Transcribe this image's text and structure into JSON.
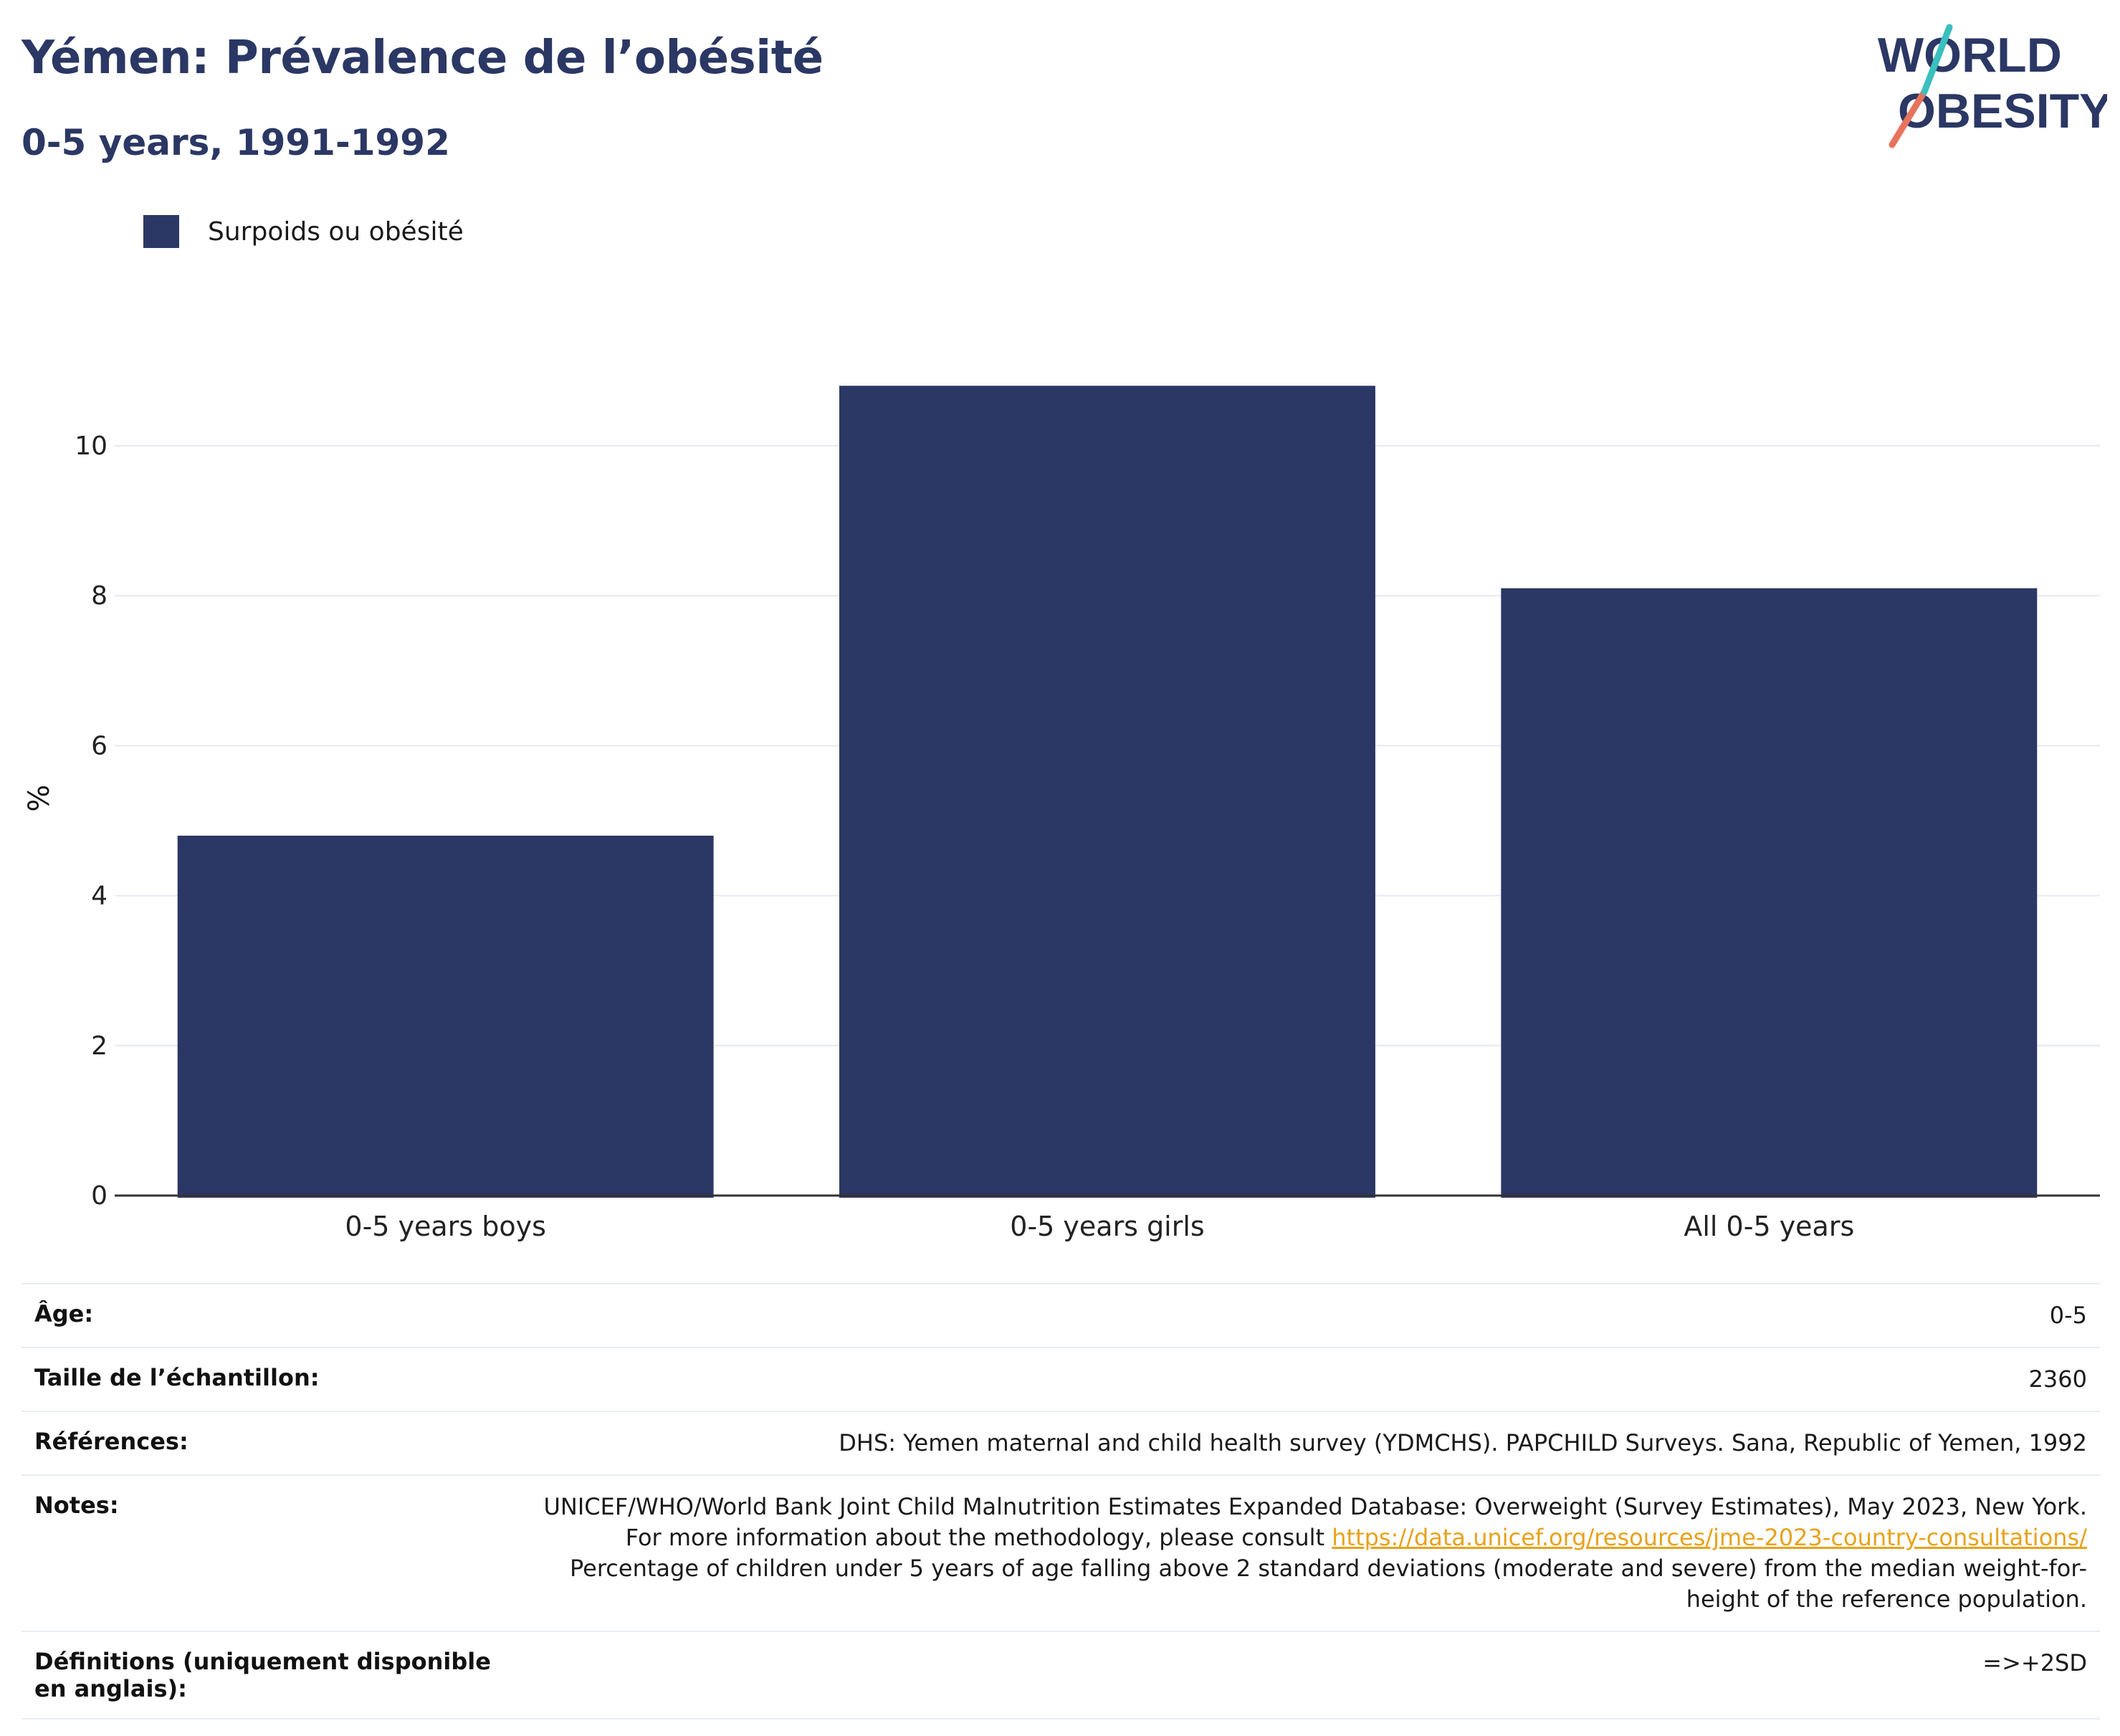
{
  "header": {
    "title": "Yémen: Prévalence de l’obésité",
    "subtitle": "0-5 years, 1991-1992"
  },
  "logo": {
    "line1": "WORLD",
    "line2": "OBESITY"
  },
  "legend": {
    "label": "Surpoids ou obésité",
    "color": "#2b3764"
  },
  "chart_data": {
    "type": "bar",
    "categories": [
      "0-5 years boys",
      "0-5 years girls",
      "All 0-5 years"
    ],
    "series": [
      {
        "name": "Surpoids ou obésité",
        "values": [
          4.8,
          10.8,
          8.1
        ],
        "color": "#2b3764"
      }
    ],
    "ylabel": "%",
    "xlabel": "",
    "ylim": [
      0,
      11.5
    ],
    "yticks": [
      0,
      2,
      4,
      6,
      8,
      10
    ],
    "grid": true,
    "legend_position": "top-left"
  },
  "meta": {
    "age": {
      "label": "Âge:",
      "value": "0-5"
    },
    "sample": {
      "label": "Taille de l’échantillon:",
      "value": "2360"
    },
    "references": {
      "label": "Références:",
      "value": "DHS: Yemen maternal and child health survey (YDMCHS). PAPCHILD Surveys. Sana, Republic of Yemen, 1992"
    },
    "notes": {
      "label": "Notes:",
      "text1": "UNICEF/WHO/World Bank Joint Child Malnutrition Estimates Expanded Database: Overweight (Survey Estimates), May 2023, New York. For more information about the methodology, please consult ",
      "link": "https://data.unicef.org/resources/jme-2023-country-consultations/",
      "text2": "Percentage of children under 5 years of age falling above 2 standard deviations (moderate and severe) from the median weight-for-height of the reference population."
    },
    "definitions": {
      "label": "Définitions (uniquement disponible en anglais):",
      "value": "=>+2SD"
    }
  }
}
